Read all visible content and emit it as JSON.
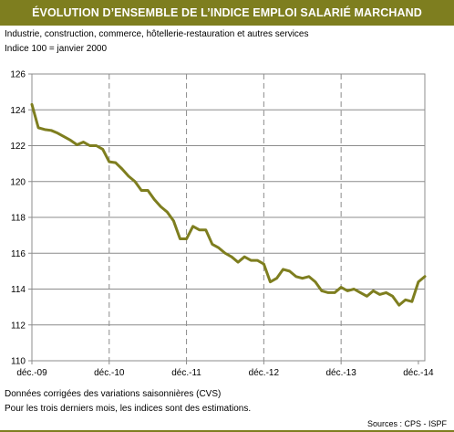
{
  "title": "ÉVOLUTION D’ENSEMBLE DE L’INDICE EMPLOI SALARIÉ MARCHAND",
  "subtitle": "Industrie, construction, commerce, hôtellerie-restauration et autres services",
  "index_note": "Indice 100 = janvier 2000",
  "notes": [
    "Données corrigées des variations saisonnières (CVS)",
    "Pour les trois derniers mois, les indices sont des estimations."
  ],
  "source": "Sources : CPS - ISPF",
  "colors": {
    "line": "#7e7e1f",
    "title_bg": "#7e7e1f",
    "grid": "#8c8c8c"
  },
  "chart_data": {
    "type": "line",
    "title": "ÉVOLUTION D’ENSEMBLE DE L’INDICE EMPLOI SALARIÉ MARCHAND",
    "xlabel": "",
    "ylabel": "",
    "ylim": [
      110,
      126
    ],
    "yticks": [
      110,
      112,
      114,
      116,
      118,
      120,
      122,
      124,
      126
    ],
    "xticks": [
      "déc.-09",
      "déc.-10",
      "déc.-11",
      "déc.-12",
      "déc.-13",
      "déc.-14"
    ],
    "grid": {
      "horizontal": true,
      "vertical": "dashed"
    },
    "legend": "none",
    "series": [
      {
        "values": [
          124.3,
          123.0,
          122.9,
          122.85,
          122.7,
          122.5,
          122.3,
          122.05,
          122.2,
          122.0,
          122.0,
          121.8,
          121.1,
          121.05,
          120.7,
          120.3,
          120.0,
          119.5,
          119.5,
          119.0,
          118.6,
          118.3,
          117.8,
          116.8,
          116.8,
          117.5,
          117.3,
          117.3,
          116.5,
          116.3,
          116.0,
          115.8,
          115.5,
          115.8,
          115.6,
          115.6,
          115.4,
          114.4,
          114.6,
          115.1,
          115.0,
          114.7,
          114.6,
          114.7,
          114.4,
          113.9,
          113.8,
          113.8,
          114.1,
          113.9,
          114.0,
          113.8,
          113.6,
          113.9,
          113.7,
          113.8,
          113.6,
          113.1,
          113.4,
          113.3,
          114.4,
          114.7
        ]
      }
    ]
  }
}
